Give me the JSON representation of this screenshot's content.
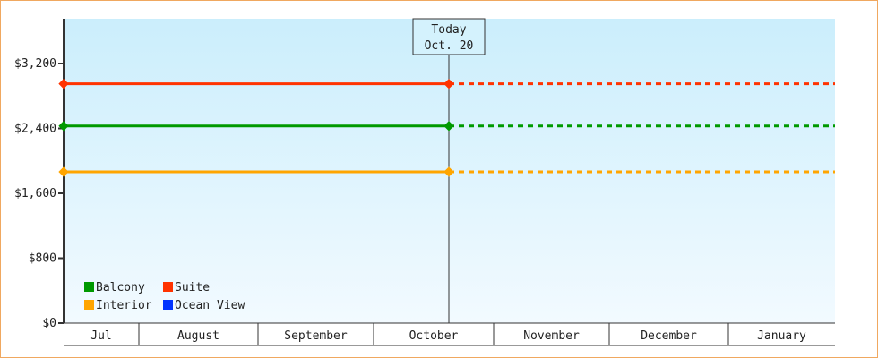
{
  "chart_data": {
    "type": "line",
    "x_categories": [
      "Jul",
      "August",
      "September",
      "October",
      "November",
      "December",
      "January"
    ],
    "ylim": [
      0,
      3600
    ],
    "y_ticks": [
      0,
      800,
      1600,
      2400,
      3200
    ],
    "y_tick_labels": [
      "$0",
      "$800",
      "$1,600",
      "$2,400",
      "$3,200"
    ],
    "today_marker": {
      "line1": "Today",
      "line2": "Oct. 20"
    },
    "series": [
      {
        "name": "Balcony",
        "color": "#009900",
        "value": 2430,
        "solid_until": "Oct. 20",
        "projected": "dashed"
      },
      {
        "name": "Suite",
        "color": "#ff3300",
        "value": 2950,
        "solid_until": "Oct. 20",
        "projected": "dashed"
      },
      {
        "name": "Interior",
        "color": "#ffa500",
        "value": 1865,
        "solid_until": "Oct. 20",
        "projected": "dashed"
      },
      {
        "name": "Ocean View",
        "color": "#0033ff",
        "value": null
      }
    ],
    "legend_placement": "bottom-left",
    "background_gradient": [
      "#cbeefc",
      "#f2faff"
    ]
  }
}
